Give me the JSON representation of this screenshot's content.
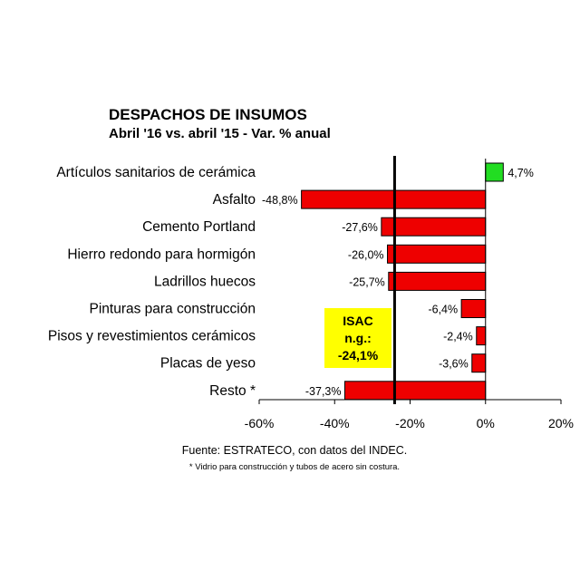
{
  "chart_data": {
    "type": "bar",
    "orientation": "horizontal",
    "title": "DESPACHOS DE INSUMOS",
    "subtitle": "Abril '16 vs. abril '15 - Var. % anual",
    "categories": [
      "Artículos sanitarios de cerámica",
      "Asfalto",
      "Cemento Portland",
      "Hierro redondo para hormigón",
      "Ladrillos huecos",
      "Pinturas para construcción",
      "Pisos y revestimientos cerámicos",
      "Placas de yeso",
      "Resto *"
    ],
    "values": [
      4.7,
      -48.8,
      -27.6,
      -26.0,
      -25.7,
      -6.4,
      -2.4,
      -3.6,
      -37.3
    ],
    "value_labels": [
      "4,7%",
      "-48,8%",
      "-27,6%",
      "-26,0%",
      "-25,7%",
      "-6,4%",
      "-2,4%",
      "-3,6%",
      "-37,3%"
    ],
    "xlim": [
      -60,
      20
    ],
    "xticks": [
      -60,
      -40,
      -20,
      0,
      20
    ],
    "xtick_labels": [
      "-60%",
      "-40%",
      "-20%",
      "0%",
      "20%"
    ],
    "reference_line": {
      "value": -24.1
    },
    "colors": {
      "positive": "#22dd22",
      "negative": "#ee0000",
      "reference_line": "#000000",
      "isac_box": "#ffff00"
    },
    "grid": false,
    "legend": "none",
    "annotation": {
      "lines": [
        "ISAC",
        "n.g.:",
        "-24,1%"
      ]
    },
    "source": "Fuente: ESTRATECO, con datos del INDEC.",
    "footnote": "* Vidrio para construcción y tubos de acero sin costura."
  }
}
